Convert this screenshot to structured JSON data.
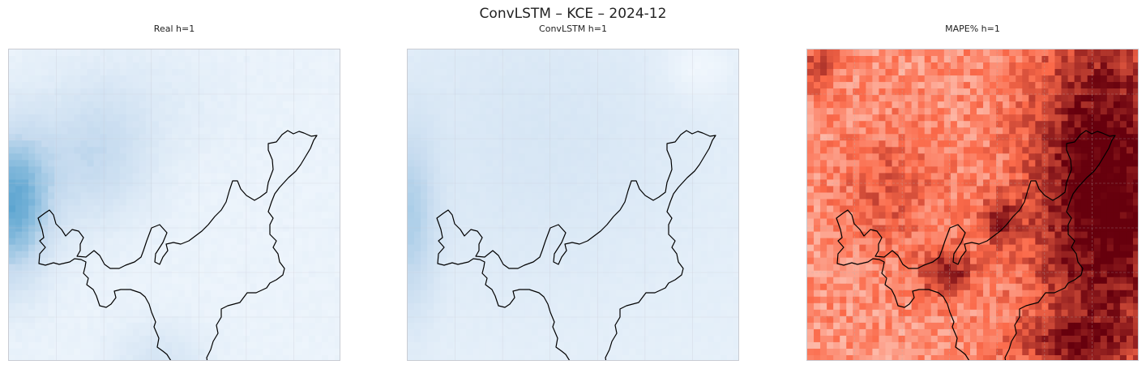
{
  "figure": {
    "title": "ConvLSTM – KCE – 2024-12"
  },
  "chart_data": [
    {
      "type": "heatmap",
      "title": "Real h=1",
      "colormap": "Blues",
      "colors": {
        "low": "#f7fbff",
        "mid": "#c6dbef",
        "high": "#4b9ccb"
      },
      "grid": true,
      "outline": "black region boundary"
    },
    {
      "type": "heatmap",
      "title": "ConvLSTM h=1",
      "colormap": "Blues",
      "colors": {
        "low": "#f7fbff",
        "mid": "#c6dbef",
        "high": "#6aaed6"
      },
      "grid": true,
      "outline": "black region boundary"
    },
    {
      "type": "heatmap",
      "title": "MAPE% h=1",
      "colormap": "Reds",
      "colors": {
        "low": "#fff5f0",
        "mid": "#fb6a4a",
        "high": "#67000d"
      },
      "grid": true,
      "outline": "black region boundary"
    }
  ]
}
